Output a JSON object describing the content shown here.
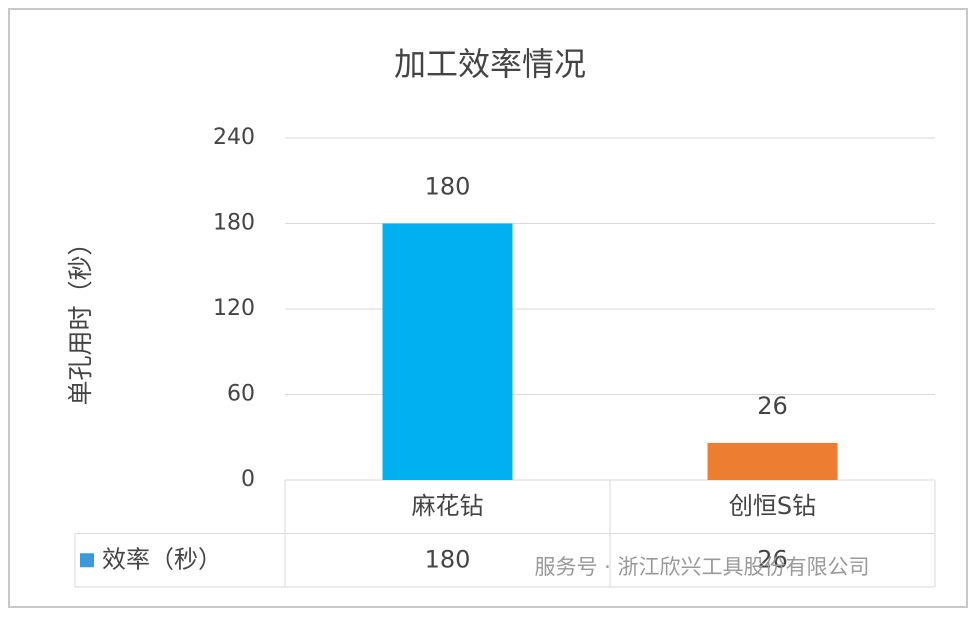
{
  "chart_data": {
    "type": "bar",
    "title": "加工效率情况",
    "y_label": "单孔用时（秒）",
    "categories": [
      "麻花钻",
      "创恒S钻"
    ],
    "series": [
      {
        "name": "效率（秒）",
        "color": "#3d9ad9",
        "values": [
          180,
          26
        ],
        "bar_colors": [
          "#00b0f0",
          "#ed7d31"
        ]
      }
    ],
    "ylim": [
      0,
      240
    ],
    "yticks": [
      0,
      60,
      120,
      180,
      240
    ],
    "grid": true,
    "data_table": true,
    "watermark": "服务号 · 浙江欣兴工具股份有限公司"
  }
}
